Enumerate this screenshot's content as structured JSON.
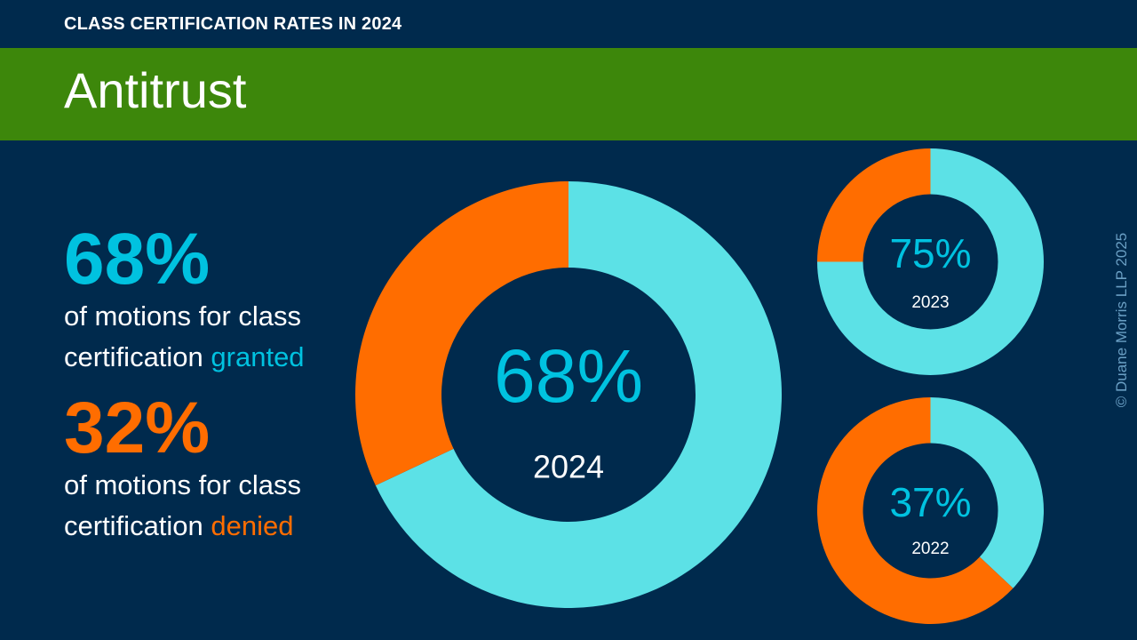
{
  "header": {
    "eyebrow": "CLASS CERTIFICATION RATES IN 2024"
  },
  "banner": {
    "title": "Antitrust"
  },
  "summary": {
    "granted": {
      "value": "68%",
      "text": "of motions for class certification ",
      "keyword": "granted"
    },
    "denied": {
      "value": "32%",
      "text": "of motions for class certification ",
      "keyword": "denied"
    }
  },
  "colors": {
    "background": "#002a4d",
    "banner": "#3d870b",
    "granted": "#5ce1e6",
    "denied": "#ff6d00",
    "stat_text": "#00c2e0",
    "copyright": "#6a9fc4"
  },
  "copyright": "© Duane Morris LLP 2025",
  "chart_data": [
    {
      "type": "pie",
      "year": "2024",
      "center_label": "68%",
      "categories": [
        "granted",
        "denied"
      ],
      "values": [
        68,
        32
      ]
    },
    {
      "type": "pie",
      "year": "2023",
      "center_label": "75%",
      "categories": [
        "granted",
        "denied"
      ],
      "values": [
        75,
        25
      ]
    },
    {
      "type": "pie",
      "year": "2022",
      "center_label": "37%",
      "categories": [
        "granted",
        "denied"
      ],
      "values": [
        37,
        63
      ]
    }
  ]
}
